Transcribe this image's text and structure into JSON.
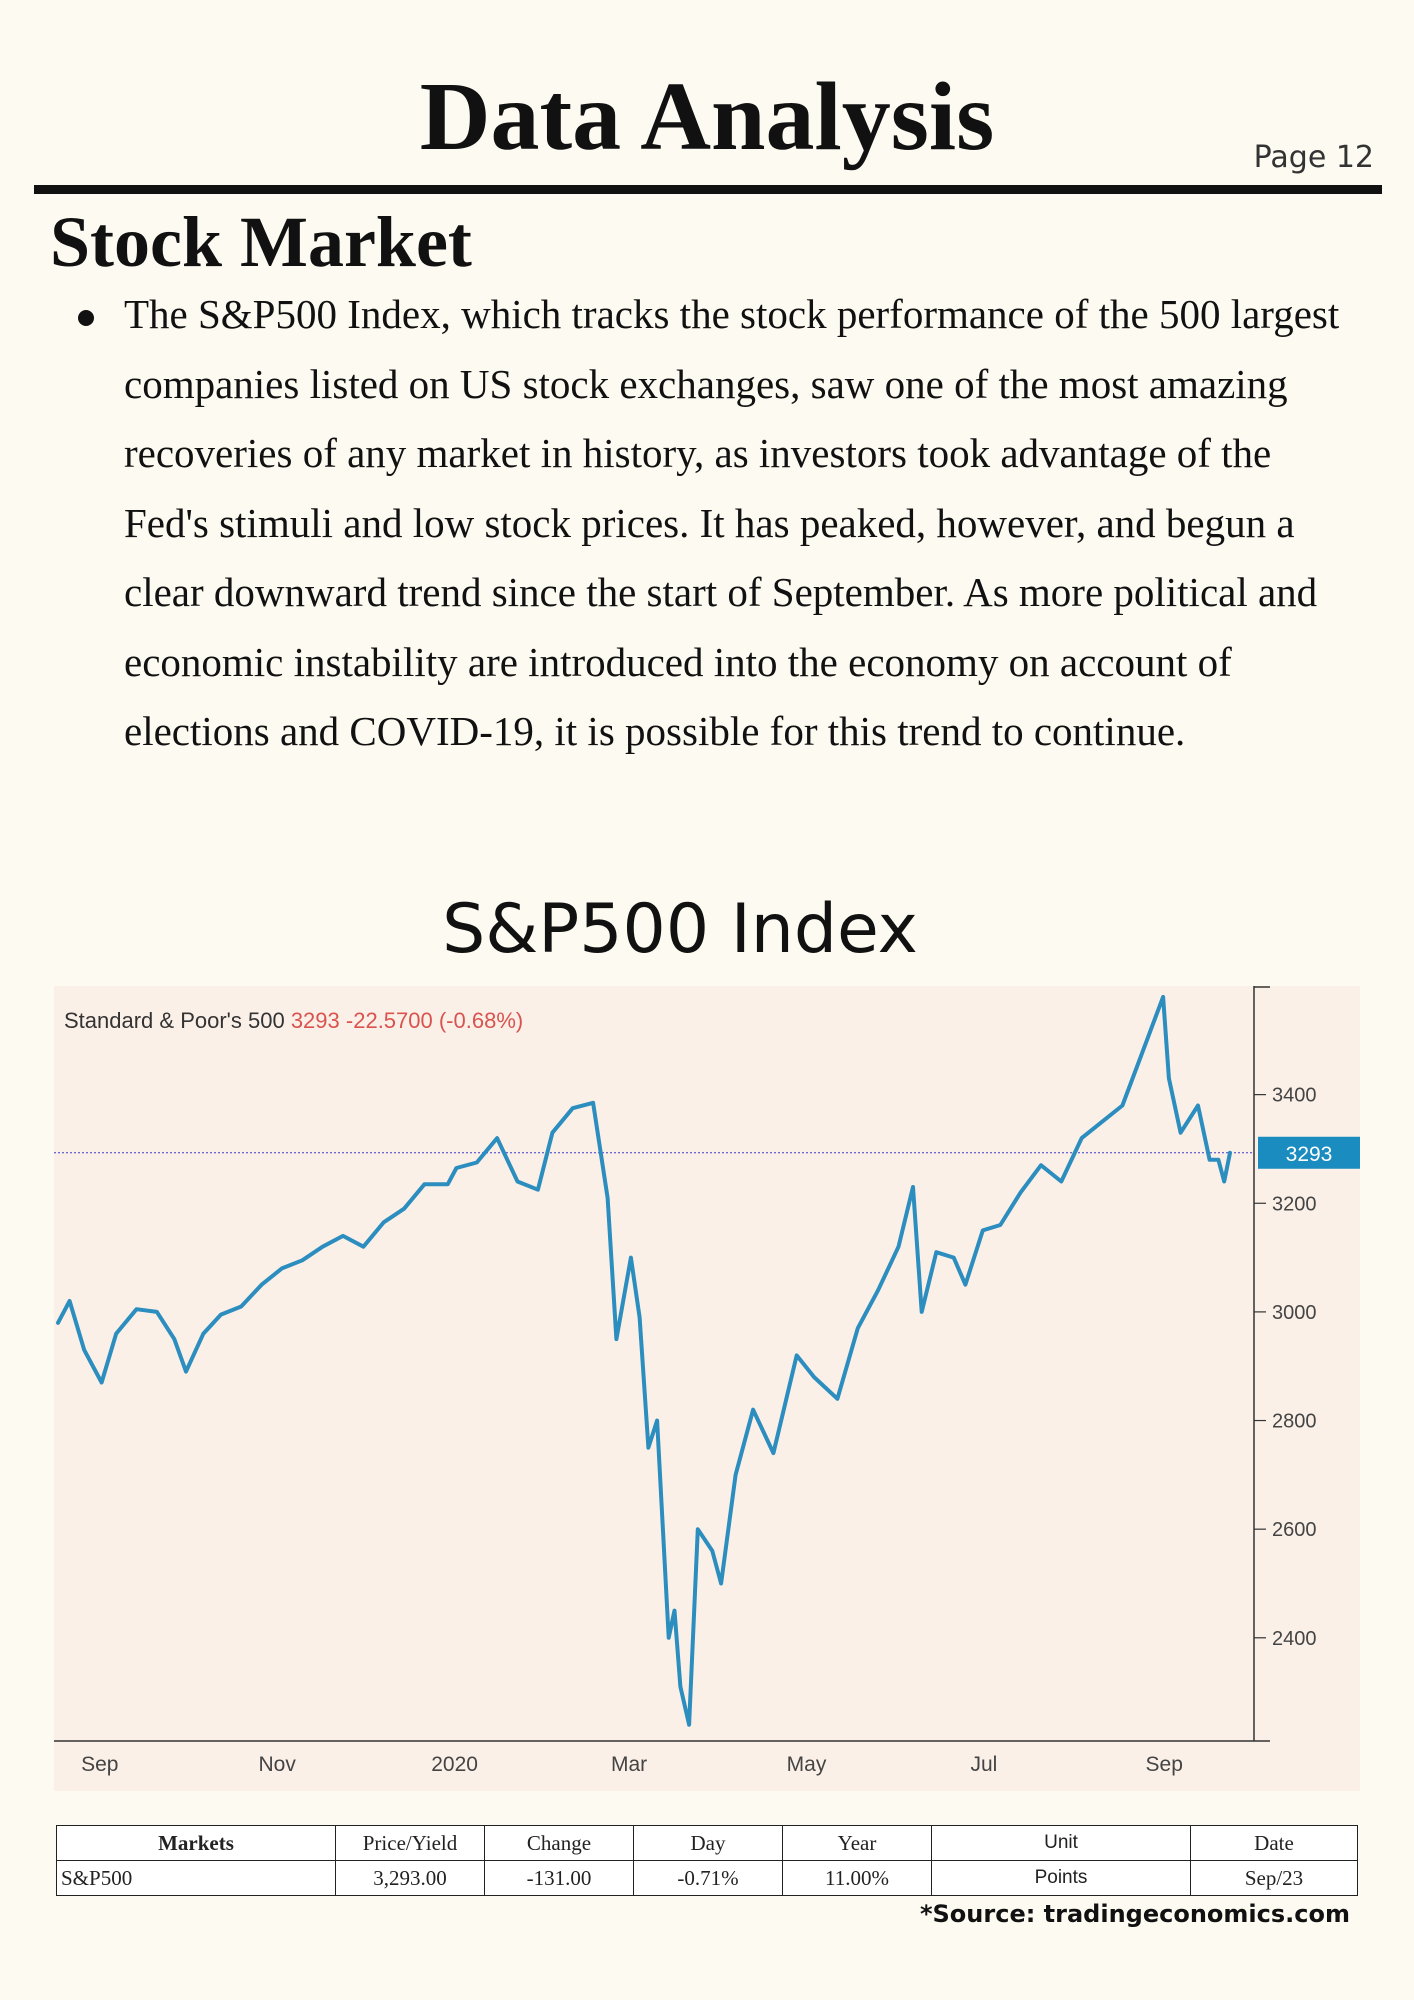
{
  "header": {
    "title": "Data Analysis",
    "page": "Page 12"
  },
  "section": {
    "title": "Stock Market",
    "bullet": "The S&P500 Index, which tracks the stock performance of the 500 largest companies listed on US stock exchanges, saw one of the most amazing recoveries of any market in history, as investors took advantage of the Fed's stimuli and low stock prices. It has peaked, however, and begun a clear downward trend since the start of September. As more political and economic instability are introduced into the economy on account of elections and COVID-19, it is possible for this trend to continue."
  },
  "chart_header": {
    "name": "Standard & Poor's 500",
    "price": "3293",
    "change": "-22.5700 (-0.68%)"
  },
  "chart_data": {
    "type": "line",
    "title": "S&P500 Index",
    "x_tick_labels": [
      "Sep",
      "Nov",
      "2020",
      "Mar",
      "May",
      "Jul",
      "Sep"
    ],
    "y_tick_labels": [
      "3400",
      "3200",
      "3000",
      "2800",
      "2600",
      "2400"
    ],
    "ylim": [
      2210,
      3600
    ],
    "current_value_label": "3293",
    "current_value": 3293,
    "line_color": "#2c8dbf",
    "price_box_color": "#1a8cc0",
    "grid": false,
    "series": [
      {
        "x": [
          "2019-08-19",
          "2019-08-23",
          "2019-08-28",
          "2019-09-03",
          "2019-09-08",
          "2019-09-15",
          "2019-09-22",
          "2019-09-28",
          "2019-10-02",
          "2019-10-08",
          "2019-10-14",
          "2019-10-21",
          "2019-10-28",
          "2019-11-04",
          "2019-11-11",
          "2019-11-18",
          "2019-11-25",
          "2019-12-02",
          "2019-12-09",
          "2019-12-16",
          "2019-12-23",
          "2019-12-31",
          "2020-01-03",
          "2020-01-10",
          "2020-01-17",
          "2020-01-24",
          "2020-01-31",
          "2020-02-05",
          "2020-02-12",
          "2020-02-19",
          "2020-02-24",
          "2020-02-27",
          "2020-03-03",
          "2020-03-06",
          "2020-03-09",
          "2020-03-12",
          "2020-03-16",
          "2020-03-18",
          "2020-03-20",
          "2020-03-23",
          "2020-03-26",
          "2020-03-31",
          "2020-04-03",
          "2020-04-08",
          "2020-04-14",
          "2020-04-21",
          "2020-04-29",
          "2020-05-05",
          "2020-05-13",
          "2020-05-20",
          "2020-05-27",
          "2020-06-03",
          "2020-06-08",
          "2020-06-11",
          "2020-06-16",
          "2020-06-22",
          "2020-06-26",
          "2020-07-02",
          "2020-07-08",
          "2020-07-15",
          "2020-07-22",
          "2020-07-29",
          "2020-08-05",
          "2020-08-12",
          "2020-08-19",
          "2020-08-26",
          "2020-09-02",
          "2020-09-04",
          "2020-09-08",
          "2020-09-14",
          "2020-09-18",
          "2020-09-21",
          "2020-09-23",
          "2020-09-25"
        ],
        "y": [
          2980,
          3020,
          2930,
          2870,
          2960,
          3005,
          3000,
          2950,
          2890,
          2960,
          2995,
          3010,
          3050,
          3080,
          3095,
          3120,
          3140,
          3120,
          3165,
          3190,
          3235,
          3235,
          3265,
          3275,
          3320,
          3240,
          3225,
          3330,
          3375,
          3385,
          3210,
          2950,
          3100,
          2990,
          2750,
          2800,
          2400,
          2450,
          2310,
          2240,
          2600,
          2560,
          2500,
          2700,
          2820,
          2740,
          2920,
          2880,
          2840,
          2970,
          3040,
          3120,
          3230,
          3000,
          3110,
          3100,
          3050,
          3150,
          3160,
          3220,
          3270,
          3240,
          3320,
          3350,
          3380,
          3480,
          3580,
          3430,
          3330,
          3380,
          3280,
          3280,
          3240,
          3293
        ]
      }
    ]
  },
  "table": {
    "headers": [
      "Markets",
      "Price/Yield",
      "Change",
      "Day",
      "Year",
      "Unit",
      "Date"
    ],
    "row": [
      "S&P500",
      "3,293.00",
      "-131.00",
      "-0.71%",
      "11.00%",
      "Points",
      "Sep/23"
    ]
  },
  "source": "*Source: tradingeconomics.com"
}
